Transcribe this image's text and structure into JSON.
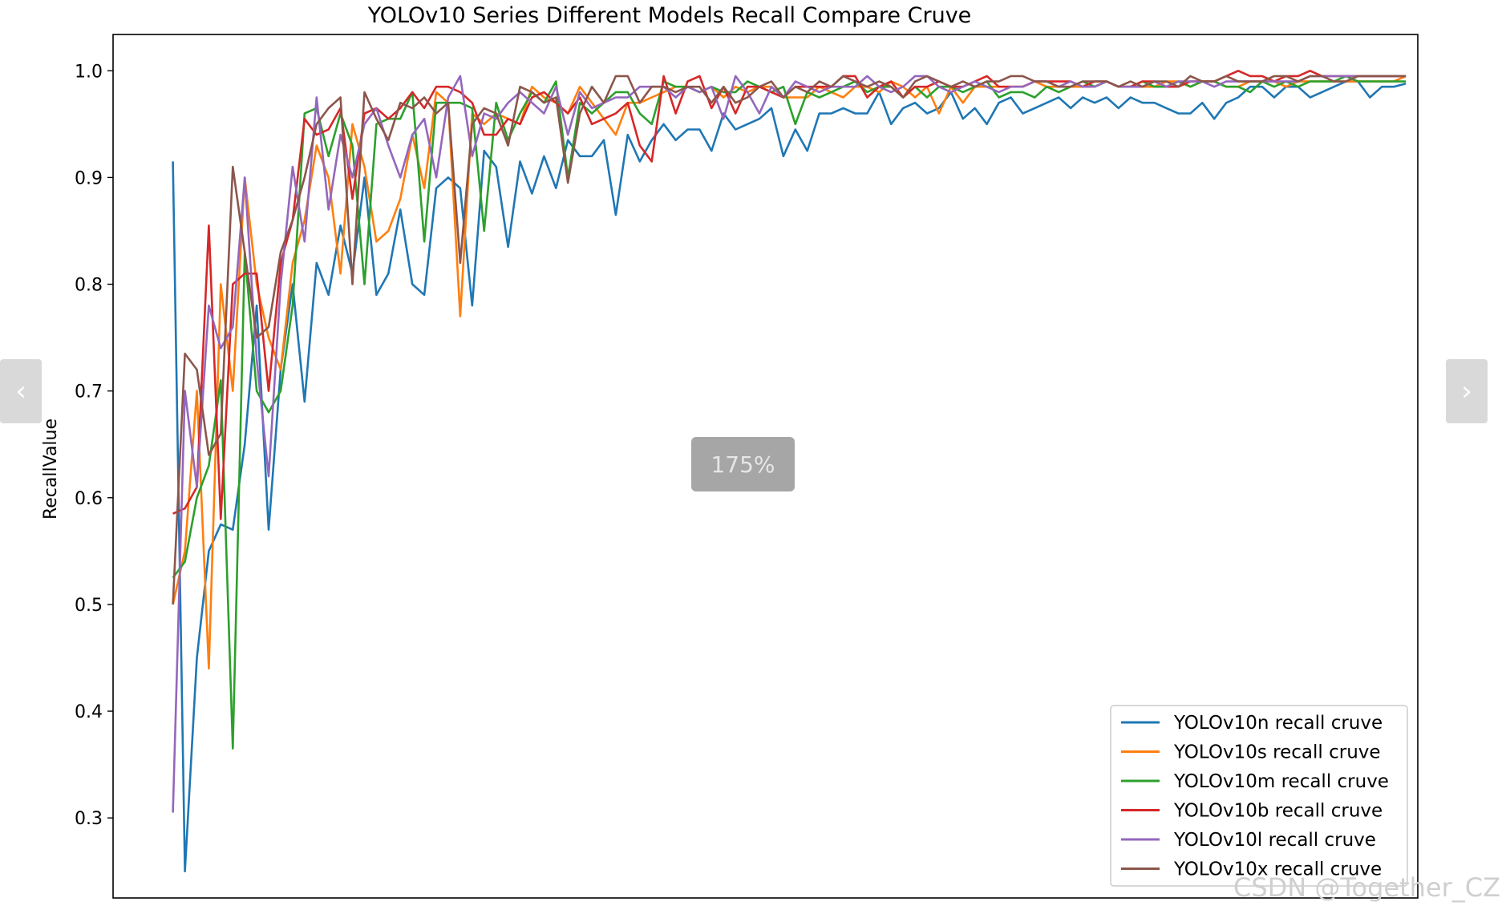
{
  "chart_data": {
    "type": "line",
    "title": "YOLOv10 Series Different Models Recall Compare Cruve",
    "xlabel": "",
    "ylabel": "RecallValue",
    "xlim": [
      -5,
      104
    ],
    "ylim": [
      0.225,
      1.034
    ],
    "yticks": [
      0.3,
      0.4,
      0.5,
      0.6,
      0.7,
      0.8,
      0.9,
      1.0
    ],
    "ytick_labels": [
      "0.3",
      "0.4",
      "0.5",
      "0.6",
      "0.7",
      "0.8",
      "0.9",
      "1.0"
    ],
    "grid": false,
    "legend_position": "lower-right",
    "colors": [
      "#1f77b4",
      "#ff7f0e",
      "#2ca02c",
      "#d62728",
      "#9467bd",
      "#8c564b"
    ],
    "series": [
      {
        "name": "YOLOv10n recall cruve",
        "values": [
          0.915,
          0.25,
          0.45,
          0.55,
          0.575,
          0.57,
          0.65,
          0.78,
          0.57,
          0.72,
          0.8,
          0.69,
          0.82,
          0.79,
          0.855,
          0.81,
          0.9,
          0.79,
          0.81,
          0.87,
          0.8,
          0.79,
          0.89,
          0.9,
          0.89,
          0.78,
          0.925,
          0.91,
          0.835,
          0.915,
          0.885,
          0.92,
          0.89,
          0.935,
          0.92,
          0.92,
          0.935,
          0.865,
          0.94,
          0.915,
          0.935,
          0.95,
          0.935,
          0.945,
          0.945,
          0.925,
          0.96,
          0.945,
          0.95,
          0.955,
          0.965,
          0.92,
          0.945,
          0.925,
          0.96,
          0.96,
          0.965,
          0.96,
          0.96,
          0.98,
          0.95,
          0.965,
          0.97,
          0.96,
          0.965,
          0.98,
          0.955,
          0.965,
          0.95,
          0.97,
          0.975,
          0.96,
          0.965,
          0.97,
          0.975,
          0.965,
          0.975,
          0.97,
          0.975,
          0.965,
          0.975,
          0.97,
          0.97,
          0.965,
          0.96,
          0.96,
          0.97,
          0.955,
          0.97,
          0.975,
          0.985,
          0.985,
          0.975,
          0.985,
          0.985,
          0.975,
          0.98,
          0.985,
          0.99,
          0.99,
          0.975,
          0.985,
          0.985,
          0.988
        ]
      },
      {
        "name": "YOLOv10s recall cruve",
        "values": [
          0.5,
          0.55,
          0.7,
          0.44,
          0.8,
          0.7,
          0.9,
          0.8,
          0.75,
          0.72,
          0.82,
          0.86,
          0.93,
          0.9,
          0.81,
          0.95,
          0.91,
          0.84,
          0.85,
          0.88,
          0.94,
          0.89,
          0.98,
          0.97,
          0.77,
          0.96,
          0.95,
          0.96,
          0.955,
          0.95,
          0.985,
          0.975,
          0.97,
          0.96,
          0.985,
          0.97,
          0.955,
          0.94,
          0.97,
          0.97,
          0.975,
          0.98,
          0.985,
          0.985,
          0.98,
          0.985,
          0.975,
          0.985,
          0.98,
          0.985,
          0.985,
          0.975,
          0.975,
          0.975,
          0.985,
          0.98,
          0.975,
          0.985,
          0.985,
          0.98,
          0.99,
          0.985,
          0.975,
          0.985,
          0.96,
          0.985,
          0.97,
          0.985,
          0.985,
          0.985,
          0.985,
          0.985,
          0.99,
          0.985,
          0.985,
          0.985,
          0.985,
          0.985,
          0.99,
          0.985,
          0.985,
          0.985,
          0.985,
          0.99,
          0.99,
          0.985,
          0.99,
          0.99,
          0.985,
          0.985,
          0.99,
          0.99,
          0.99,
          0.985,
          0.99,
          0.99,
          0.99,
          0.99,
          0.99,
          0.99,
          0.99,
          0.99,
          0.99,
          0.995
        ]
      },
      {
        "name": "YOLOv10m recall cruve",
        "values": [
          0.525,
          0.54,
          0.6,
          0.63,
          0.71,
          0.365,
          0.83,
          0.7,
          0.68,
          0.7,
          0.78,
          0.96,
          0.965,
          0.92,
          0.96,
          0.93,
          0.8,
          0.95,
          0.955,
          0.955,
          0.98,
          0.84,
          0.97,
          0.97,
          0.97,
          0.965,
          0.85,
          0.97,
          0.935,
          0.96,
          0.98,
          0.97,
          0.99,
          0.9,
          0.97,
          0.96,
          0.97,
          0.98,
          0.98,
          0.96,
          0.95,
          0.99,
          0.985,
          0.985,
          0.98,
          0.985,
          0.98,
          0.98,
          0.99,
          0.985,
          0.98,
          0.985,
          0.95,
          0.98,
          0.975,
          0.98,
          0.985,
          0.99,
          0.98,
          0.985,
          0.985,
          0.975,
          0.985,
          0.975,
          0.985,
          0.985,
          0.98,
          0.985,
          0.99,
          0.975,
          0.98,
          0.98,
          0.975,
          0.985,
          0.98,
          0.985,
          0.99,
          0.985,
          0.99,
          0.985,
          0.985,
          0.99,
          0.985,
          0.985,
          0.99,
          0.985,
          0.99,
          0.99,
          0.985,
          0.985,
          0.98,
          0.99,
          0.985,
          0.99,
          0.985,
          0.99,
          0.99,
          0.99,
          0.995,
          0.99,
          0.99,
          0.99,
          0.99,
          0.99
        ]
      },
      {
        "name": "YOLOv10b recall cruve",
        "values": [
          0.585,
          0.59,
          0.61,
          0.855,
          0.58,
          0.8,
          0.81,
          0.81,
          0.7,
          0.82,
          0.86,
          0.955,
          0.94,
          0.945,
          0.965,
          0.88,
          0.96,
          0.965,
          0.955,
          0.965,
          0.98,
          0.965,
          0.985,
          0.985,
          0.98,
          0.97,
          0.94,
          0.94,
          0.955,
          0.95,
          0.975,
          0.98,
          0.97,
          0.96,
          0.975,
          0.95,
          0.955,
          0.96,
          0.97,
          0.93,
          0.915,
          0.995,
          0.96,
          0.99,
          0.995,
          0.965,
          0.985,
          0.96,
          0.985,
          0.985,
          0.98,
          0.975,
          0.985,
          0.985,
          0.985,
          0.985,
          0.995,
          0.995,
          0.975,
          0.985,
          0.99,
          0.975,
          0.985,
          0.985,
          0.99,
          0.985,
          0.985,
          0.99,
          0.995,
          0.985,
          0.985,
          0.985,
          0.99,
          0.99,
          0.99,
          0.99,
          0.985,
          0.99,
          0.99,
          0.985,
          0.985,
          0.99,
          0.99,
          0.985,
          0.985,
          0.99,
          0.99,
          0.99,
          0.995,
          1.0,
          0.995,
          0.995,
          0.99,
          0.995,
          0.995,
          1.0,
          0.995,
          0.995,
          0.995,
          0.995,
          0.995,
          0.995,
          0.995,
          0.995
        ]
      },
      {
        "name": "YOLOv10l recall cruve",
        "values": [
          0.305,
          0.7,
          0.61,
          0.78,
          0.74,
          0.76,
          0.9,
          0.73,
          0.62,
          0.8,
          0.91,
          0.84,
          0.975,
          0.87,
          0.94,
          0.9,
          0.95,
          0.965,
          0.93,
          0.9,
          0.94,
          0.955,
          0.9,
          0.975,
          0.995,
          0.92,
          0.96,
          0.955,
          0.97,
          0.98,
          0.97,
          0.96,
          0.985,
          0.94,
          0.98,
          0.965,
          0.97,
          0.975,
          0.975,
          0.985,
          0.985,
          0.985,
          0.975,
          0.985,
          0.98,
          0.985,
          0.955,
          0.995,
          0.98,
          0.96,
          0.985,
          0.975,
          0.99,
          0.985,
          0.98,
          0.985,
          0.985,
          0.985,
          0.995,
          0.985,
          0.98,
          0.985,
          0.995,
          0.995,
          0.985,
          0.98,
          0.985,
          0.99,
          0.985,
          0.98,
          0.985,
          0.985,
          0.99,
          0.99,
          0.985,
          0.99,
          0.985,
          0.985,
          0.99,
          0.985,
          0.985,
          0.985,
          0.99,
          0.985,
          0.99,
          0.99,
          0.99,
          0.985,
          0.99,
          0.99,
          0.99,
          0.99,
          0.99,
          0.99,
          0.99,
          0.995,
          0.995,
          0.995,
          0.995,
          0.995,
          0.995,
          0.995,
          0.995,
          0.995
        ]
      },
      {
        "name": "YOLOv10x recall cruve",
        "values": [
          0.5,
          0.735,
          0.72,
          0.64,
          0.66,
          0.91,
          0.83,
          0.75,
          0.76,
          0.83,
          0.86,
          0.9,
          0.95,
          0.965,
          0.975,
          0.8,
          0.98,
          0.955,
          0.935,
          0.97,
          0.965,
          0.975,
          0.96,
          0.97,
          0.82,
          0.95,
          0.965,
          0.96,
          0.93,
          0.985,
          0.98,
          0.97,
          0.975,
          0.895,
          0.96,
          0.985,
          0.97,
          0.995,
          0.995,
          0.97,
          0.985,
          0.985,
          0.98,
          0.985,
          0.985,
          0.97,
          0.985,
          0.97,
          0.975,
          0.985,
          0.99,
          0.975,
          0.985,
          0.98,
          0.99,
          0.985,
          0.995,
          0.99,
          0.985,
          0.99,
          0.985,
          0.975,
          0.99,
          0.995,
          0.99,
          0.985,
          0.99,
          0.985,
          0.99,
          0.99,
          0.995,
          0.995,
          0.99,
          0.99,
          0.985,
          0.985,
          0.99,
          0.99,
          0.99,
          0.985,
          0.99,
          0.985,
          0.99,
          0.99,
          0.985,
          0.995,
          0.99,
          0.99,
          0.995,
          0.99,
          0.99,
          0.99,
          0.995,
          0.995,
          0.99,
          0.995,
          0.995,
          0.99,
          0.99,
          0.995,
          0.995,
          0.995,
          0.995,
          0.995
        ]
      }
    ]
  },
  "ui": {
    "zoom_label": "175%",
    "prev_glyph": "‹",
    "next_glyph": "›",
    "watermark": "CSDN @Together_CZ"
  }
}
